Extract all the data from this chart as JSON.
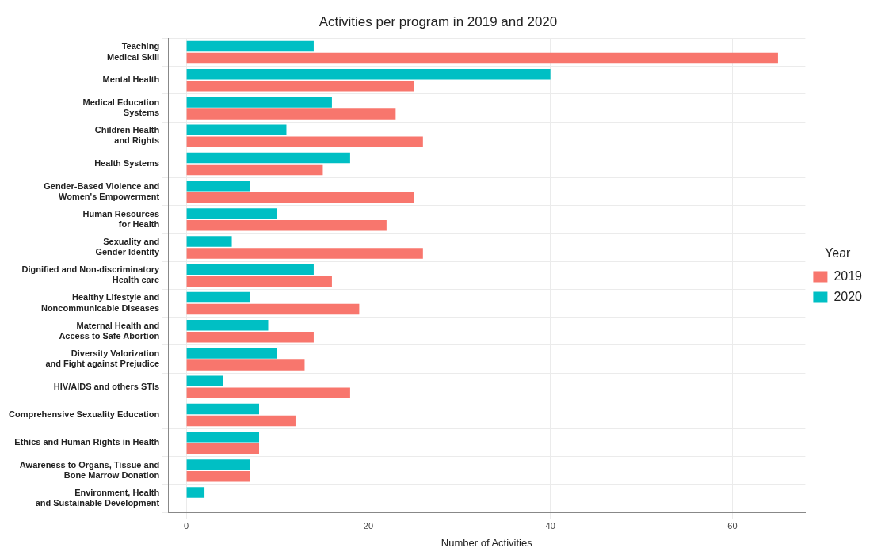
{
  "chart_data": {
    "type": "bar",
    "orientation": "horizontal",
    "title": "Activities per program in 2019 and 2020",
    "xlabel": "Number of Activities",
    "legend_title": "Year",
    "legend": "right",
    "grid": true,
    "categories": [
      "Teaching\nMedical Skill",
      "Mental Health",
      "Medical Education\nSystems",
      "Children Health\nand Rights",
      "Health Systems",
      "Gender-Based Violence and\nWomen's Empowerment",
      "Human Resources\nfor Health",
      "Sexuality and\nGender Identity",
      "Dignified and Non-discriminatory\nHealth care",
      "Healthy Lifestyle and\nNoncommunicable Diseases",
      "Maternal Health and\nAccess to Safe Abortion",
      "Diversity Valorization\nand Fight against Prejudice",
      "HIV/AIDS and others STIs",
      "Comprehensive Sexuality Education",
      "Ethics and Human Rights in Health",
      "Awareness to Organs, Tissue and\nBone Marrow Donation",
      "Environment, Health\nand Sustainable Development"
    ],
    "series": [
      {
        "name": "2019",
        "color": "#f8766d",
        "values": [
          65,
          25,
          23,
          26,
          15,
          25,
          22,
          26,
          16,
          19,
          14,
          13,
          18,
          12,
          8,
          7,
          0
        ]
      },
      {
        "name": "2020",
        "color": "#00bfc4",
        "values": [
          14,
          40,
          16,
          11,
          18,
          7,
          10,
          5,
          14,
          7,
          9,
          10,
          4,
          8,
          8,
          7,
          2
        ]
      }
    ],
    "xlim": [
      -2,
      68
    ],
    "xticks": [
      0,
      20,
      40,
      60
    ]
  }
}
